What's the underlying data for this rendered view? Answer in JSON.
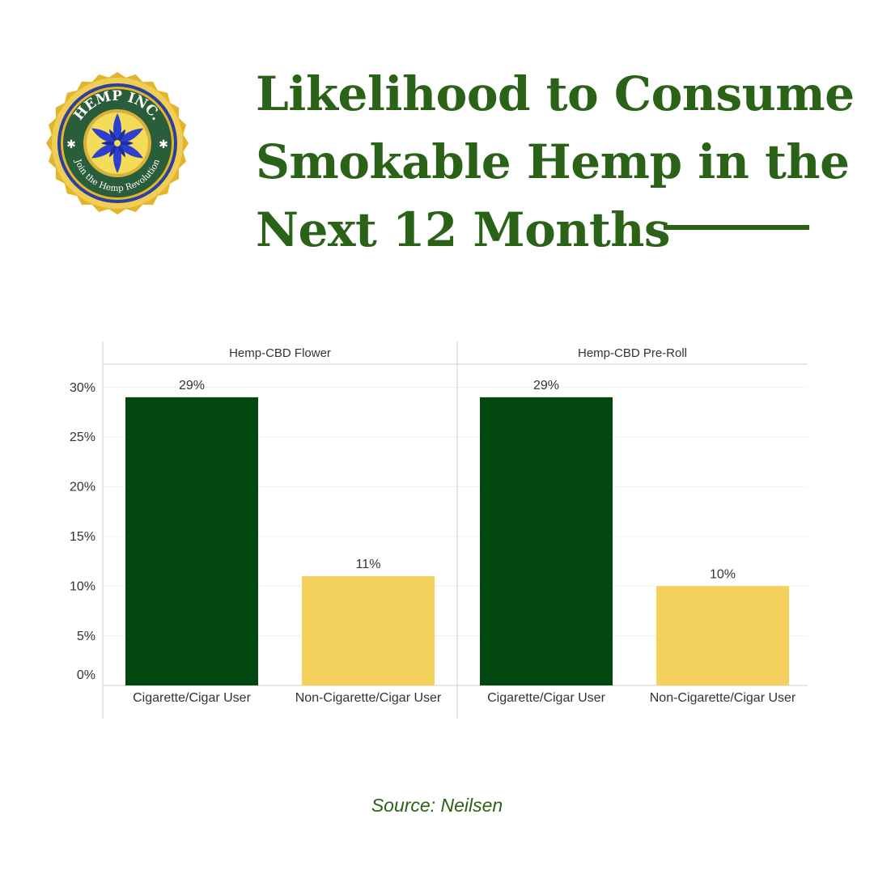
{
  "logo": {
    "top_text": "HEMP INC.",
    "bottom_text": "Join the Hemp Revolution",
    "colors": {
      "ring": "#2a5d3a",
      "gold": "#e3b52c",
      "border": "#2b3f9e",
      "flower": "#2d3fcf"
    }
  },
  "title": "Likelihood to Consume Smokable Hemp in the Next 12 Months",
  "source": "Source: Neilsen",
  "chart_data": {
    "type": "bar",
    "y_ticks": [
      "0%",
      "5%",
      "10%",
      "15%",
      "20%",
      "25%",
      "30%"
    ],
    "ylim": [
      0,
      31.5
    ],
    "grid": true,
    "panels": [
      {
        "title": "Hemp-CBD Flower",
        "categories": [
          "Cigarette/Cigar User",
          "Non-Cigarette/Cigar User"
        ],
        "values": [
          29,
          11
        ],
        "labels": [
          "29%",
          "11%"
        ]
      },
      {
        "title": "Hemp-CBD Pre-Roll",
        "categories": [
          "Cigarette/Cigar User",
          "Non-Cigarette/Cigar User"
        ],
        "values": [
          29,
          10
        ],
        "labels": [
          "29%",
          "10%"
        ]
      }
    ],
    "colors": [
      "#02470f",
      "#f4d05c"
    ]
  }
}
